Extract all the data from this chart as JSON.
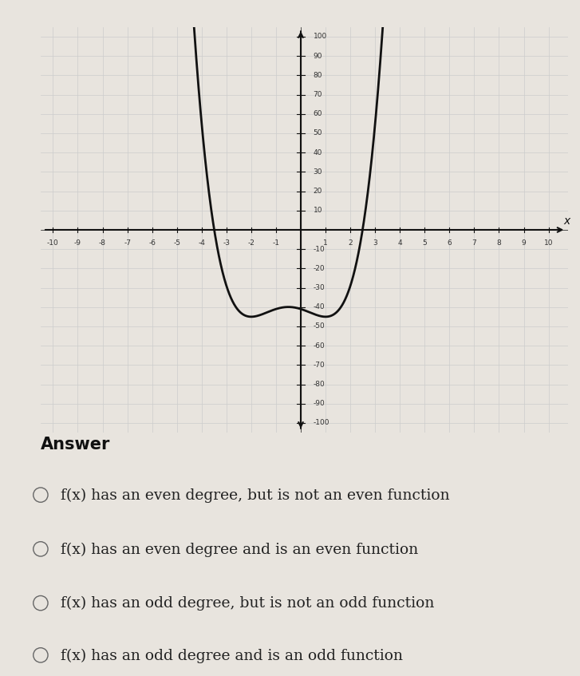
{
  "xlim": [
    -10.5,
    10.8
  ],
  "ylim": [
    -105,
    105
  ],
  "xticks": [
    -10,
    -9,
    -8,
    -7,
    -6,
    -5,
    -4,
    -3,
    -2,
    -1,
    1,
    2,
    3,
    4,
    5,
    6,
    7,
    8,
    9,
    10
  ],
  "yticks": [
    -100,
    -90,
    -80,
    -70,
    -60,
    -50,
    -40,
    -30,
    -20,
    -10,
    10,
    20,
    30,
    40,
    50,
    60,
    70,
    80,
    90,
    100
  ],
  "grid_minor_color": "#cccccc",
  "grid_major_color": "#bbbbbb",
  "bg_color": "#dcdcdc",
  "curve_color": "#111111",
  "axis_color": "#111111",
  "tick_label_color": "#333333",
  "answer_title": "Answer",
  "choices": [
    "f(x) has an even degree, but is not an even function",
    "f(x) has an even degree and is an even function",
    "f(x) has an odd degree, but is not an odd function",
    "f(x) has an odd degree and is an odd function"
  ],
  "choice_fontsize": 13.5,
  "answer_fontsize": 15,
  "page_bg": "#e8e4de",
  "poly_coeffs": [
    1,
    2,
    -3,
    -4,
    -41
  ]
}
